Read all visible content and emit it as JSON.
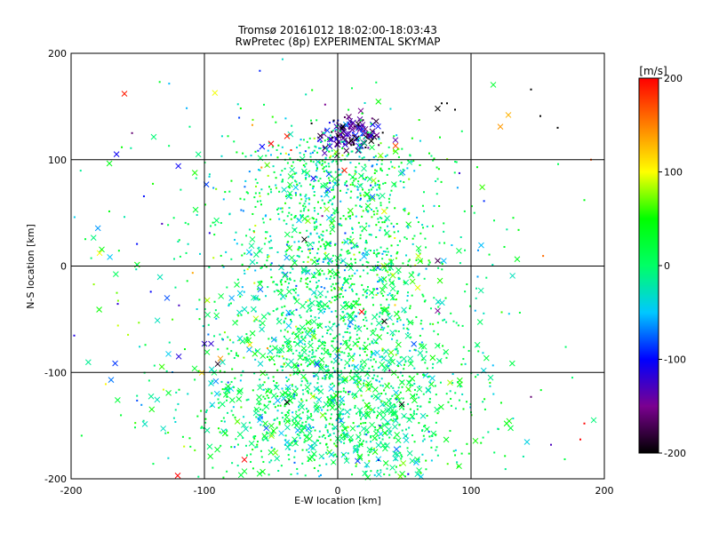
{
  "chart_data": {
    "type": "scatter",
    "title_line1": "Tromsø 20161012 18:02:00-18:03:43",
    "title_line2": "RwPretec (8p) EXPERIMENTAL SKYMAP",
    "xlabel": "E-W location [km]",
    "ylabel": "N-S location [km]",
    "xlim": [
      -200,
      200
    ],
    "ylim": [
      -200,
      200
    ],
    "x_ticks": [
      -200,
      -100,
      0,
      100,
      200
    ],
    "y_ticks": [
      -200,
      -100,
      0,
      100,
      200
    ],
    "grid": true,
    "colorbar": {
      "label": "[m/s]",
      "range": [
        -200,
        200
      ],
      "ticks": [
        200,
        100,
        0,
        -100,
        -200
      ],
      "colors": [
        "#000000",
        "#7b0090",
        "#0000ff",
        "#00c8ff",
        "#00ff66",
        "#00ff00",
        "#ffff00",
        "#ff8000",
        "#ff0000"
      ]
    },
    "markers": {
      "dot": "small point",
      "cross": "x"
    },
    "clusters": [
      {
        "x": 10,
        "y": 125,
        "sx": 12,
        "sy": 9,
        "n": 140,
        "v": -150,
        "dv": 40,
        "cross_frac": 0.55
      },
      {
        "x": 0,
        "y": -140,
        "sx": 55,
        "sy": 40,
        "n": 1100,
        "v": 5,
        "dv": 30,
        "cross_frac": 0.28
      },
      {
        "x": 0,
        "y": -60,
        "sx": 45,
        "sy": 40,
        "n": 650,
        "v": 5,
        "dv": 35,
        "cross_frac": 0.22
      },
      {
        "x": 5,
        "y": 20,
        "sx": 40,
        "sy": 40,
        "n": 600,
        "v": 0,
        "dv": 35,
        "cross_frac": 0.1
      },
      {
        "x": 0,
        "y": 90,
        "sx": 40,
        "sy": 25,
        "n": 350,
        "v": 0,
        "dv": 40,
        "cross_frac": 0.1
      },
      {
        "x": -40,
        "y": 0,
        "sx": 100,
        "sy": 110,
        "n": 300,
        "v": 0,
        "dv": 60,
        "cross_frac": 0.2
      }
    ],
    "points": [
      {
        "x": -160,
        "y": 162,
        "v": 190,
        "m": "x"
      },
      {
        "x": 128,
        "y": 142,
        "v": 130,
        "m": "x"
      },
      {
        "x": 122,
        "y": 131,
        "v": 140,
        "m": "x"
      },
      {
        "x": 145,
        "y": 166,
        "v": -200,
        "m": "."
      },
      {
        "x": 152,
        "y": 141,
        "v": -200,
        "m": "."
      },
      {
        "x": 165,
        "y": 130,
        "v": -200,
        "m": "."
      },
      {
        "x": 75,
        "y": 148,
        "v": -200,
        "m": "x"
      },
      {
        "x": 82,
        "y": 153,
        "v": -200,
        "m": "."
      },
      {
        "x": 88,
        "y": 147,
        "v": -200,
        "m": "."
      },
      {
        "x": 78,
        "y": 153,
        "v": -200,
        "m": "."
      },
      {
        "x": -50,
        "y": 115,
        "v": 200,
        "m": "x"
      },
      {
        "x": -38,
        "y": 122,
        "v": 190,
        "m": "x"
      },
      {
        "x": -35,
        "y": 109,
        "v": 190,
        "m": "."
      },
      {
        "x": 5,
        "y": 90,
        "v": 190,
        "m": "x"
      },
      {
        "x": -120,
        "y": -197,
        "v": 200,
        "m": "x"
      },
      {
        "x": -70,
        "y": -182,
        "v": 200,
        "m": "x"
      },
      {
        "x": 18,
        "y": -43,
        "v": 200,
        "m": "x"
      },
      {
        "x": -90,
        "y": -92,
        "v": -190,
        "m": "x"
      },
      {
        "x": 75,
        "y": -42,
        "v": -150,
        "m": "x"
      },
      {
        "x": 75,
        "y": 5,
        "v": -170,
        "m": "x"
      },
      {
        "x": -25,
        "y": 25,
        "v": -200,
        "m": "x"
      },
      {
        "x": 35,
        "y": -52,
        "v": -200,
        "m": "x"
      },
      {
        "x": 48,
        "y": -130,
        "v": -200,
        "m": "x"
      },
      {
        "x": -38,
        "y": -128,
        "v": -200,
        "m": "x"
      },
      {
        "x": -95,
        "y": -73,
        "v": -120,
        "m": "x"
      },
      {
        "x": -100,
        "y": -73,
        "v": -120,
        "m": "x"
      },
      {
        "x": -128,
        "y": -30,
        "v": -80,
        "m": "x"
      },
      {
        "x": -170,
        "y": -107,
        "v": -70,
        "m": "x"
      },
      {
        "x": -58,
        "y": -22,
        "v": -70,
        "m": "x"
      },
      {
        "x": -88,
        "y": -87,
        "v": 140,
        "m": "x"
      },
      {
        "x": 185,
        "y": -148,
        "v": 200,
        "m": "."
      },
      {
        "x": 182,
        "y": -163,
        "v": 200,
        "m": "."
      },
      {
        "x": 160,
        "y": -168,
        "v": -130,
        "m": "."
      },
      {
        "x": 145,
        "y": -123,
        "v": -160,
        "m": "."
      },
      {
        "x": 190,
        "y": 100,
        "v": 170,
        "m": "."
      },
      {
        "x": 185,
        "y": 62,
        "v": 40,
        "m": "."
      },
      {
        "x": 125,
        "y": 18,
        "v": 30,
        "m": "."
      },
      {
        "x": 105,
        "y": -10,
        "v": -60,
        "m": "."
      }
    ]
  }
}
